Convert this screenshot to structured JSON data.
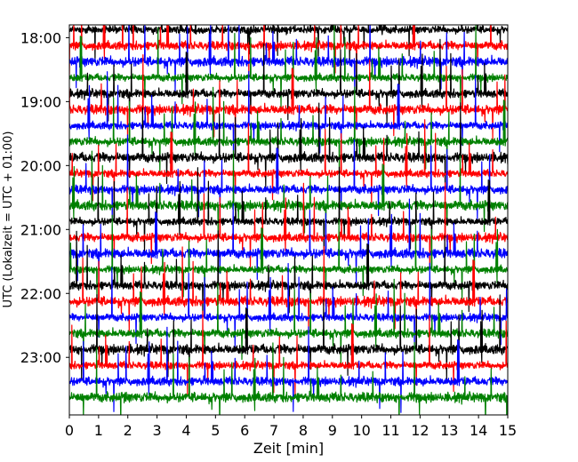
{
  "chart_data": {
    "type": "line",
    "title": "",
    "xlabel": "Zeit  [min]",
    "ylabel": "UTC (Lokalzeit = UTC + 01:00)",
    "xlim": [
      0,
      15
    ],
    "x_ticks": [
      0,
      1,
      2,
      3,
      4,
      5,
      6,
      7,
      8,
      9,
      10,
      11,
      12,
      13,
      14,
      15
    ],
    "y_range": [
      "17:48",
      "23:54"
    ],
    "y_ticks": [
      "18:00",
      "19:00",
      "20:00",
      "21:00",
      "22:00",
      "23:00"
    ],
    "grid": false,
    "legend": "none",
    "trace_interval_minutes": 15,
    "trace_colors": [
      "#000000",
      "#ff0000",
      "#0000ff",
      "#008000"
    ],
    "traces": [
      {
        "start": "17:45",
        "color": "#000000"
      },
      {
        "start": "18:00",
        "color": "#ff0000"
      },
      {
        "start": "18:15",
        "color": "#0000ff"
      },
      {
        "start": "18:30",
        "color": "#008000"
      },
      {
        "start": "18:45",
        "color": "#000000"
      },
      {
        "start": "19:00",
        "color": "#ff0000"
      },
      {
        "start": "19:15",
        "color": "#0000ff"
      },
      {
        "start": "19:30",
        "color": "#008000"
      },
      {
        "start": "19:45",
        "color": "#000000"
      },
      {
        "start": "20:00",
        "color": "#ff0000"
      },
      {
        "start": "20:15",
        "color": "#0000ff"
      },
      {
        "start": "20:30",
        "color": "#008000"
      },
      {
        "start": "20:45",
        "color": "#000000"
      },
      {
        "start": "21:00",
        "color": "#ff0000"
      },
      {
        "start": "21:15",
        "color": "#0000ff"
      },
      {
        "start": "21:30",
        "color": "#008000"
      },
      {
        "start": "21:45",
        "color": "#000000"
      },
      {
        "start": "22:00",
        "color": "#ff0000"
      },
      {
        "start": "22:15",
        "color": "#0000ff"
      },
      {
        "start": "22:30",
        "color": "#008000"
      },
      {
        "start": "22:45",
        "color": "#000000"
      },
      {
        "start": "23:00",
        "color": "#ff0000"
      },
      {
        "start": "23:15",
        "color": "#0000ff"
      },
      {
        "start": "23:30",
        "color": "#008000"
      }
    ]
  }
}
